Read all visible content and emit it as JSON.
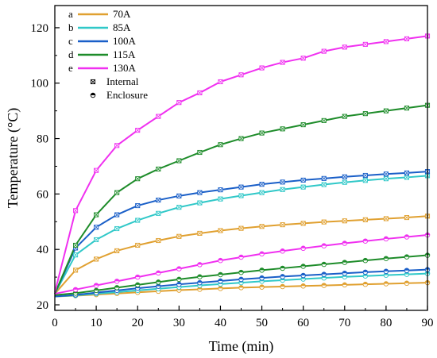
{
  "chart_data": {
    "type": "line",
    "xlabel": "Time (min)",
    "ylabel": "Temperature (°C)",
    "xlim": [
      0,
      90
    ],
    "ylim": [
      18,
      128
    ],
    "xticks": [
      0,
      10,
      20,
      30,
      40,
      50,
      60,
      70,
      80,
      90
    ],
    "yticks": [
      20,
      40,
      60,
      80,
      100,
      120
    ],
    "grid": false,
    "legend_position": "top-left",
    "x": [
      0,
      5,
      10,
      15,
      20,
      25,
      30,
      35,
      40,
      45,
      50,
      55,
      60,
      65,
      70,
      75,
      80,
      85,
      90
    ],
    "series": [
      {
        "letter": "a",
        "name": "70A",
        "color": "#E0A030",
        "internal": [
          24.0,
          32.5,
          36.5,
          39.5,
          41.5,
          43.2,
          44.7,
          45.8,
          46.8,
          47.6,
          48.3,
          48.9,
          49.4,
          49.9,
          50.3,
          50.7,
          51.1,
          51.5,
          52.0
        ],
        "enclosure": [
          23.0,
          23.3,
          23.7,
          24.1,
          24.5,
          24.9,
          25.3,
          25.6,
          25.9,
          26.2,
          26.4,
          26.6,
          26.8,
          27.0,
          27.2,
          27.4,
          27.6,
          27.8,
          28.0
        ]
      },
      {
        "letter": "b",
        "name": "85A",
        "color": "#30C8C8",
        "internal": [
          24.0,
          38.0,
          43.5,
          47.5,
          50.5,
          53.0,
          55.2,
          56.8,
          58.2,
          59.4,
          60.5,
          61.6,
          62.5,
          63.4,
          64.2,
          64.9,
          65.5,
          66.0,
          66.6
        ],
        "enclosure": [
          23.0,
          23.4,
          24.0,
          24.6,
          25.2,
          25.8,
          26.4,
          27.0,
          27.5,
          28.0,
          28.5,
          28.9,
          29.3,
          29.7,
          30.1,
          30.4,
          30.7,
          31.0,
          31.3
        ]
      },
      {
        "letter": "c",
        "name": "100A",
        "color": "#1A5FC8",
        "internal": [
          24.0,
          40.5,
          48.0,
          52.5,
          55.8,
          57.8,
          59.3,
          60.5,
          61.5,
          62.5,
          63.5,
          64.3,
          65.0,
          65.6,
          66.2,
          66.7,
          67.2,
          67.6,
          68.1
        ],
        "enclosure": [
          23.0,
          23.6,
          24.4,
          25.2,
          26.0,
          26.7,
          27.4,
          28.0,
          28.6,
          29.2,
          29.7,
          30.2,
          30.6,
          31.0,
          31.4,
          31.8,
          32.1,
          32.4,
          32.7
        ]
      },
      {
        "letter": "d",
        "name": "115A",
        "color": "#1E8C2A",
        "internal": [
          24.0,
          41.5,
          52.5,
          60.5,
          65.5,
          69.0,
          72.0,
          75.0,
          77.8,
          80.0,
          82.0,
          83.5,
          85.0,
          86.5,
          88.0,
          89.0,
          90.0,
          91.0,
          92.0
        ],
        "enclosure": [
          23.5,
          24.2,
          25.2,
          26.2,
          27.2,
          28.2,
          29.2,
          30.1,
          30.9,
          31.7,
          32.5,
          33.2,
          33.9,
          34.6,
          35.3,
          36.0,
          36.7,
          37.3,
          37.9
        ]
      },
      {
        "letter": "e",
        "name": "130A",
        "color": "#F030F0",
        "internal": [
          24.5,
          54.0,
          68.5,
          77.5,
          83.0,
          88.0,
          93.0,
          96.5,
          100.5,
          103.0,
          105.5,
          107.5,
          109.0,
          111.5,
          113.0,
          114.0,
          115.0,
          116.0,
          117.0
        ],
        "enclosure": [
          24.0,
          25.5,
          27.0,
          28.5,
          30.0,
          31.5,
          33.0,
          34.5,
          36.0,
          37.2,
          38.4,
          39.4,
          40.4,
          41.3,
          42.2,
          43.0,
          43.8,
          44.5,
          45.2
        ]
      }
    ],
    "marker_legend": [
      {
        "marker": "internal",
        "label": "Internal"
      },
      {
        "marker": "enclosure",
        "label": "Enclosure"
      }
    ]
  }
}
